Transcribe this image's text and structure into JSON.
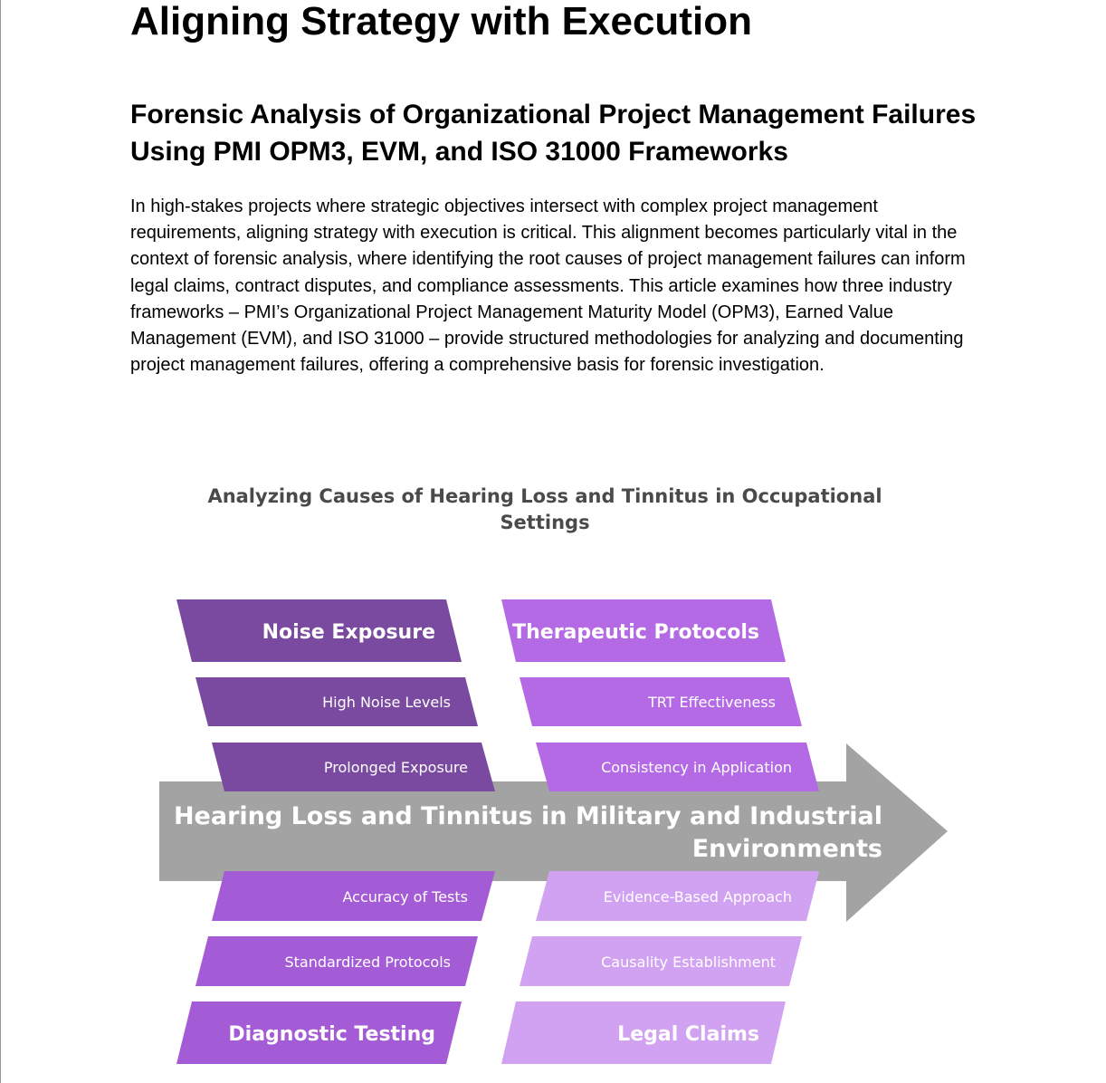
{
  "article": {
    "title": "Aligning Strategy with Execution",
    "subtitle": "Forensic Analysis of Organizational Project Management Failures Using PMI OPM3, EVM, and ISO 31000 Frameworks",
    "intro": "In high-stakes projects where strategic objectives intersect with complex project management requirements, aligning strategy with execution is critical. This alignment becomes particularly vital in the context of forensic analysis, where identifying the root causes of project management failures can inform legal claims, contract disputes, and compliance assessments. This article examines how three industry frameworks – PMI’s Organizational Project Management Maturity Model (OPM3), Earned Value Management (EVM), and ISO 31000 – provide structured methodologies for analyzing and documenting project management failures, offering a comprehensive basis for forensic investigation."
  },
  "diagram": {
    "title_line1": "Analyzing Causes of Hearing Loss and Tinnitus in Occupational",
    "title_line2": "Settings",
    "spine_line1": "Hearing Loss and Tinnitus in Military and Industrial",
    "spine_line2": "Environments",
    "top_left": {
      "header": "Noise Exposure",
      "causes": [
        "High Noise Levels",
        "Prolonged Exposure"
      ]
    },
    "top_right": {
      "header": "Therapeutic Protocols",
      "causes": [
        "TRT Effectiveness",
        "Consistency in Application"
      ]
    },
    "bottom_left": {
      "header": "Diagnostic Testing",
      "causes": [
        "Accuracy of Tests",
        "Standardized Protocols"
      ]
    },
    "bottom_right": {
      "header": "Legal Claims",
      "causes": [
        "Evidence-Based Approach",
        "Causality Establishment"
      ]
    },
    "colors": {
      "noise": "#7a4aa0",
      "therapeutic": "#b56ae5",
      "diagnostic": "#a45bd6",
      "legal": "#d2a2f2",
      "spine": "#a3a3a3",
      "title": "#4a4a4a"
    }
  }
}
